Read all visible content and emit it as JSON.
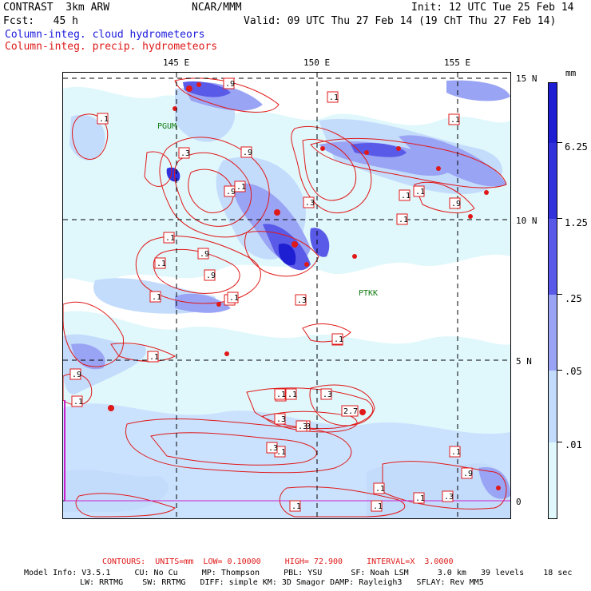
{
  "header": {
    "title_left": "CONTRAST  3km ARW",
    "center": "NCAR/MMM",
    "init": "Init: 12 UTC Tue 25 Feb 14",
    "fcst": "Fcst:   45 h",
    "valid": "Valid: 09 UTC Thu 27 Feb 14 (19 ChT Thu 27 Feb 14)",
    "field_blue": "Column-integ. cloud hydrometeors",
    "field_red": "Column-integ. precip. hydrometeors"
  },
  "map": {
    "lon_labels": [
      "145 E",
      "150 E",
      "155 E"
    ],
    "lat_labels": [
      "15 N",
      "10 N",
      "5 N",
      "0"
    ],
    "stations": [
      "PGUM",
      "PTKK"
    ],
    "contour_labels": [
      ".1",
      ".9",
      ".1",
      ".9",
      ".3",
      ".9",
      ".1",
      ".1",
      ".9",
      ".9",
      ".3",
      ".1",
      ".1",
      ".1",
      ".9",
      ".1",
      ".3",
      ".1",
      ".1",
      ".1",
      ".1",
      ".1",
      ".1",
      ".9",
      ".1",
      ".1",
      ".1",
      ".3",
      ".3",
      ".1",
      ".3",
      ".1",
      ".3",
      "2.7",
      ".1",
      ".3",
      ".1",
      ".3",
      ".1",
      ".1",
      ".9",
      ".1",
      ".1"
    ],
    "colors": {
      "lev1": "#e0f8fc",
      "lev2": "#c4dcfc",
      "lev3": "#9aa4f4",
      "lev4": "#5a5ae8",
      "lev5": "#3232dc",
      "lev6": "#1e1ed2",
      "contour": "#e01818"
    }
  },
  "colorbar": {
    "unit": "mm",
    "labels": [
      "6.25",
      "1.25",
      ".25",
      ".05",
      ".01"
    ]
  },
  "footer": {
    "contours": "CONTOURS:  UNITS=mm  LOW= 0.10000     HIGH= 72.900     INTERVAL=X  3.0000",
    "model_line1": "Model Info: V3.5.1     CU: No Cu     MP: Thompson     PBL: YSU      SF: Noah LSM      3.0 km   39 levels    18 sec",
    "model_line2": "LW: RRTMG    SW: RRTMG   DIFF: simple KM: 3D Smagor DAMP: Rayleigh3   SFLAY: Rev MM5"
  }
}
